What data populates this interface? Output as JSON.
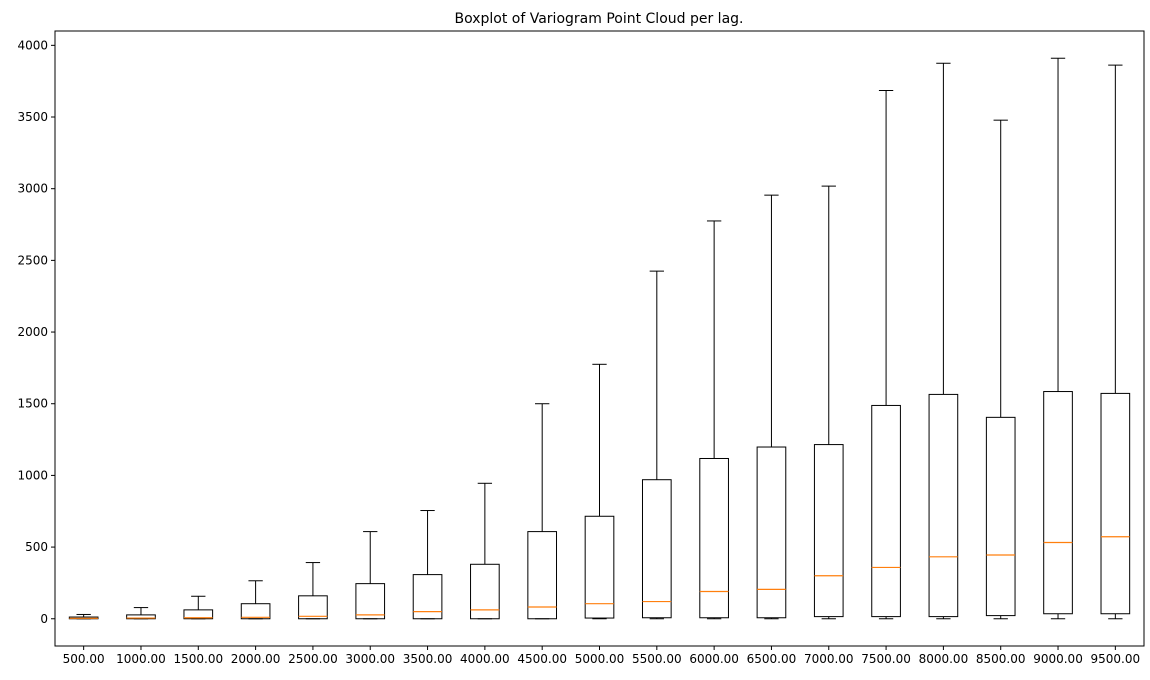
{
  "chart_data": {
    "type": "boxplot",
    "title": "Boxplot of Variogram Point Cloud per lag.",
    "xlabel": "",
    "ylabel": "",
    "ylim": [
      -190,
      4100
    ],
    "yticks": [
      0,
      500,
      1000,
      1500,
      2000,
      2500,
      3000,
      3500,
      4000
    ],
    "grid": false,
    "categories": [
      "500.00",
      "1000.00",
      "1500.00",
      "2000.00",
      "2500.00",
      "3000.00",
      "3500.00",
      "4000.00",
      "4500.00",
      "5000.00",
      "5500.00",
      "6000.00",
      "6500.00",
      "7000.00",
      "7500.00",
      "8000.00",
      "8500.00",
      "9000.00",
      "9500.00"
    ],
    "tick_labels": [
      "500.00",
      "1000.00",
      "1500.00",
      "2000.00",
      "2500.00",
      "3000.00",
      "3500.00",
      "4000.00",
      "4500.00",
      "5000.00",
      "5500.00",
      "6000.00",
      "6500.00",
      "7000.00",
      "7500.00",
      "8000.00",
      "8500.00",
      "9000.00",
      "9500.00"
    ],
    "boxes": [
      {
        "whislo": 0,
        "q1": 0,
        "med": 3,
        "q3": 12,
        "whishi": 30
      },
      {
        "whislo": 0,
        "q1": 0,
        "med": 5,
        "q3": 27,
        "whishi": 78
      },
      {
        "whislo": 0,
        "q1": 0,
        "med": 7,
        "q3": 62,
        "whishi": 157
      },
      {
        "whislo": 0,
        "q1": 0,
        "med": 10,
        "q3": 105,
        "whishi": 265
      },
      {
        "whislo": 0,
        "q1": 0,
        "med": 17,
        "q3": 160,
        "whishi": 392
      },
      {
        "whislo": 0,
        "q1": 0,
        "med": 27,
        "q3": 245,
        "whishi": 608
      },
      {
        "whislo": 0,
        "q1": 0,
        "med": 50,
        "q3": 308,
        "whishi": 755
      },
      {
        "whislo": 0,
        "q1": 0,
        "med": 62,
        "q3": 380,
        "whishi": 945
      },
      {
        "whislo": 0,
        "q1": 0,
        "med": 82,
        "q3": 608,
        "whishi": 1500
      },
      {
        "whislo": 0,
        "q1": 5,
        "med": 105,
        "q3": 715,
        "whishi": 1775
      },
      {
        "whislo": 0,
        "q1": 7,
        "med": 120,
        "q3": 970,
        "whishi": 2425
      },
      {
        "whislo": 0,
        "q1": 7,
        "med": 190,
        "q3": 1118,
        "whishi": 2775
      },
      {
        "whislo": 0,
        "q1": 7,
        "med": 205,
        "q3": 1198,
        "whishi": 2955
      },
      {
        "whislo": 0,
        "q1": 15,
        "med": 300,
        "q3": 1215,
        "whishi": 3018
      },
      {
        "whislo": 0,
        "q1": 15,
        "med": 358,
        "q3": 1488,
        "whishi": 3685
      },
      {
        "whislo": 0,
        "q1": 15,
        "med": 432,
        "q3": 1565,
        "whishi": 3875
      },
      {
        "whislo": 0,
        "q1": 22,
        "med": 445,
        "q3": 1405,
        "whishi": 3478
      },
      {
        "whislo": 0,
        "q1": 35,
        "med": 532,
        "q3": 1585,
        "whishi": 3910
      },
      {
        "whislo": 0,
        "q1": 35,
        "med": 572,
        "q3": 1572,
        "whishi": 3862
      }
    ],
    "colors": {
      "box": "#000000",
      "median": "#ff7f0e",
      "axis": "#000000",
      "background": "#ffffff"
    }
  }
}
